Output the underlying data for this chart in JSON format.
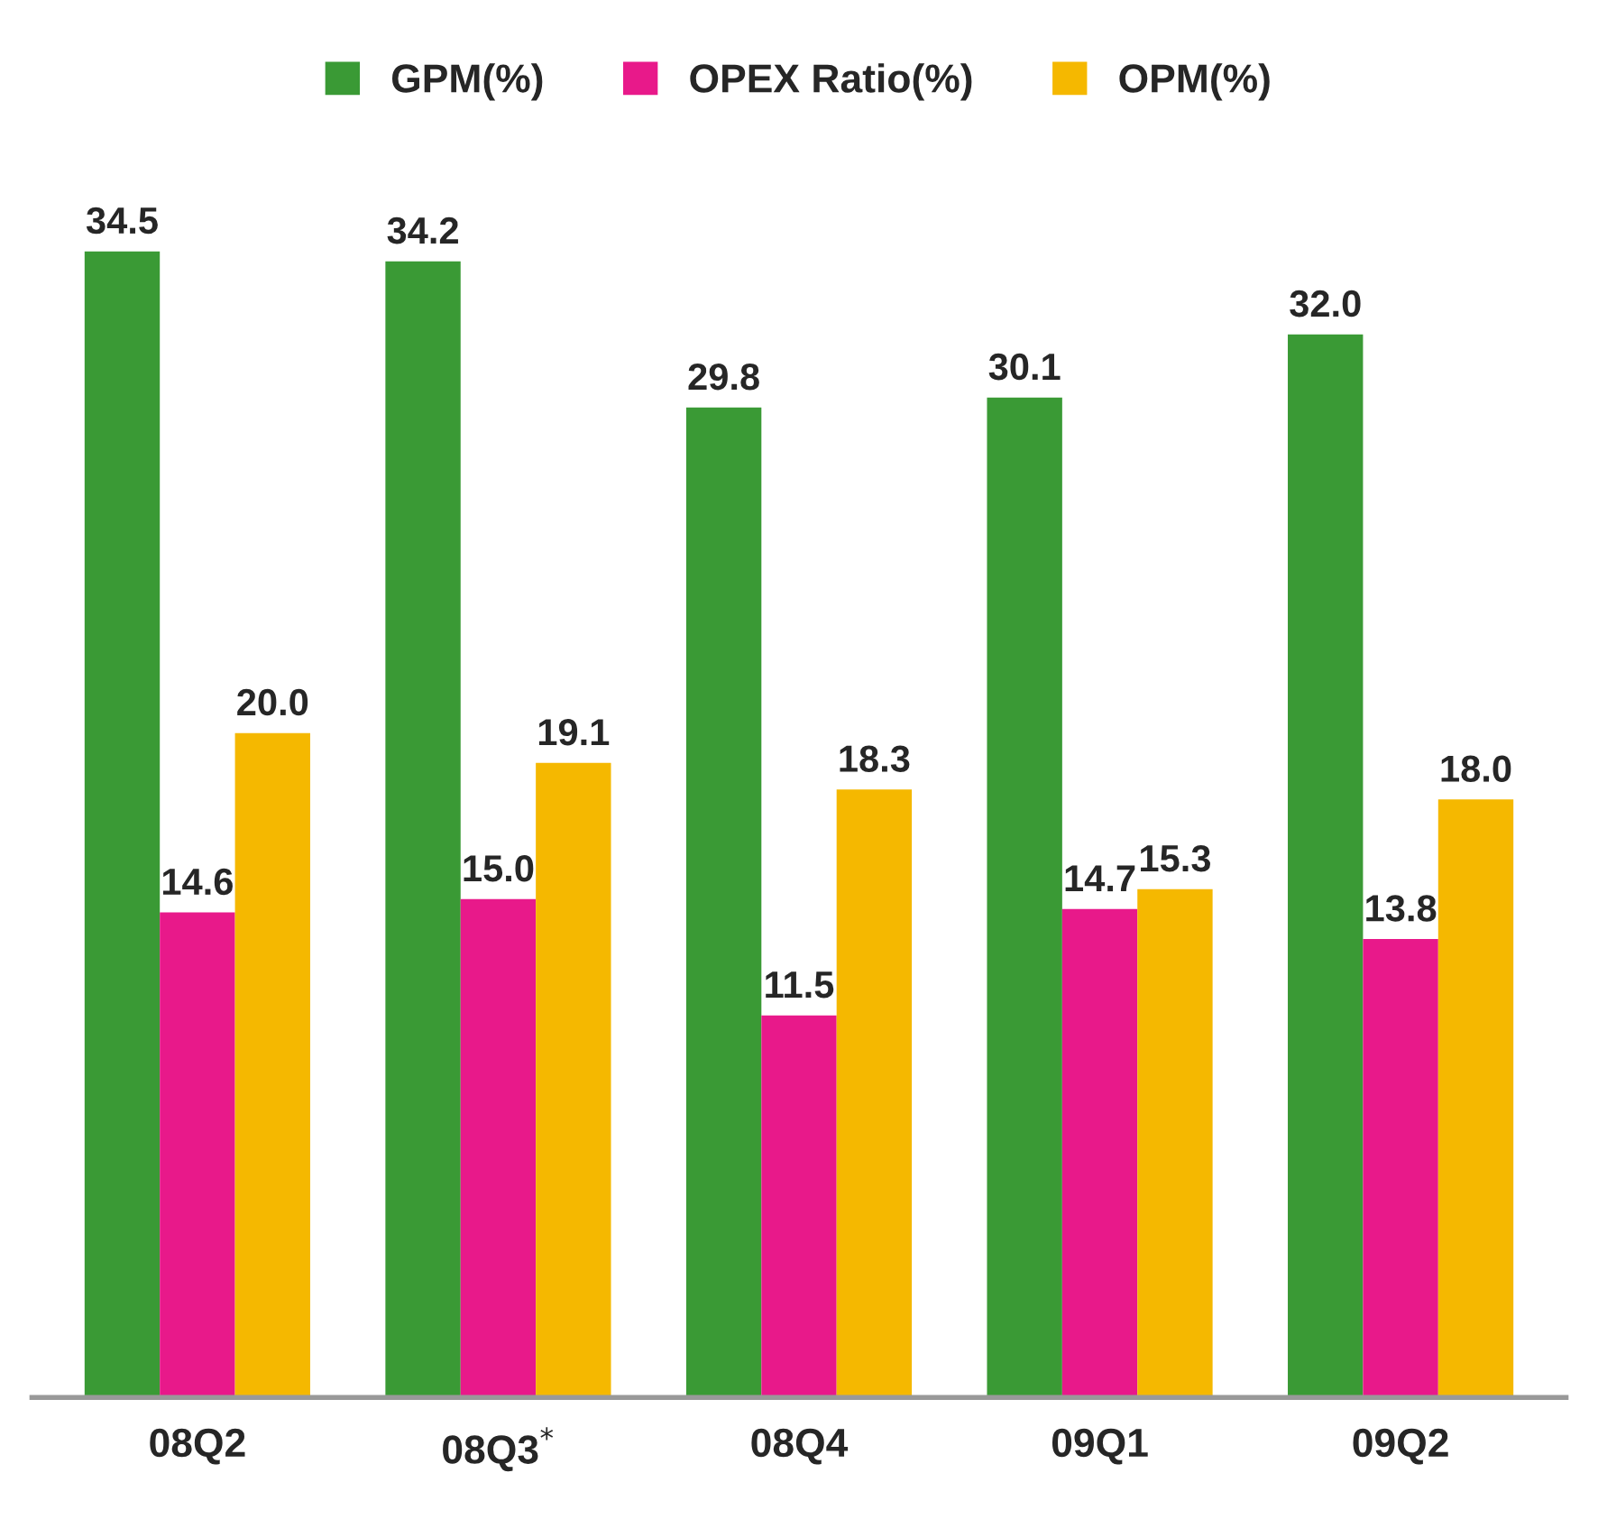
{
  "chart_data": {
    "type": "bar",
    "categories": [
      "08Q2",
      "08Q3$^{*}$",
      "08Q4",
      "09Q1",
      "09Q2"
    ],
    "series": [
      {
        "name": "GPM(%)",
        "color": "#3a9a35",
        "values": [
          34.5,
          34.2,
          29.8,
          30.1,
          32.0
        ],
        "value_labels": [
          "34.5",
          "34.2",
          "29.8",
          "30.1",
          "32.0"
        ]
      },
      {
        "name": "OPEX Ratio(%)",
        "color": "#e8198a",
        "values": [
          14.6,
          15.0,
          11.5,
          14.7,
          13.8
        ],
        "value_labels": [
          "14.6",
          "15.0",
          "11.5",
          "14.7",
          "13.8"
        ]
      },
      {
        "name": "OPM(%)",
        "color": "#f5b800",
        "values": [
          20.0,
          19.1,
          18.3,
          15.3,
          18.0
        ],
        "value_labels": [
          "20.0",
          "19.1",
          "18.3",
          "15.3",
          "18.0"
        ]
      }
    ],
    "legend": "top",
    "tick_labels": "x",
    "grid": false
  }
}
